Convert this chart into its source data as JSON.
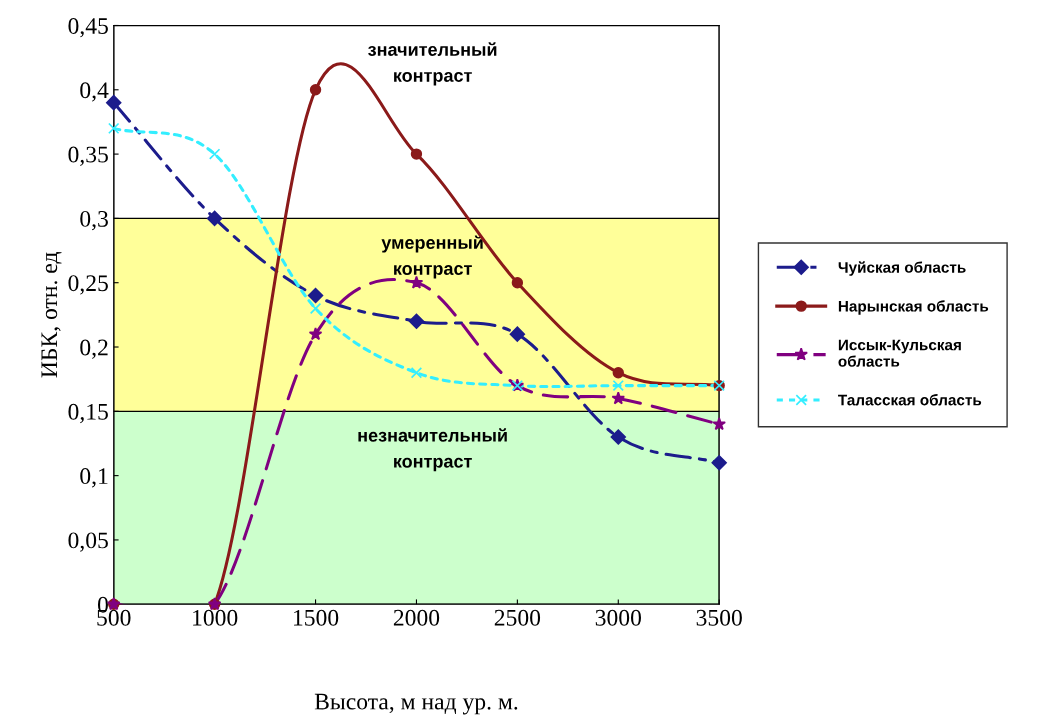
{
  "chart_data": {
    "type": "line",
    "xlabel": "Высота, м над ур. м.",
    "ylabel": "ИБК, отн. ед",
    "x": [
      500,
      1000,
      1500,
      2000,
      2500,
      3000,
      3500
    ],
    "series": [
      {
        "name": "Чуйская область",
        "color": "#1c1c8c",
        "marker": "diamond",
        "line_style": "dashdot",
        "values": [
          0.39,
          0.3,
          0.24,
          0.22,
          0.21,
          0.13,
          0.11
        ]
      },
      {
        "name": "Нарынская область",
        "color": "#8b1a1a",
        "marker": "circle",
        "line_style": "solid",
        "values": [
          0,
          0,
          0.4,
          0.35,
          0.25,
          0.18,
          0.17
        ]
      },
      {
        "name": "Иссык-Кульская\nобласть",
        "color": "#800080",
        "marker": "star",
        "line_style": "dashed",
        "values": [
          0,
          0,
          0.21,
          0.25,
          0.17,
          0.16,
          0.14
        ]
      },
      {
        "name": "Таласская область",
        "color": "#33eeff",
        "marker": "cross",
        "line_style": "dotted",
        "values": [
          0.37,
          0.35,
          0.23,
          0.18,
          0.17,
          0.17,
          0.17
        ]
      }
    ],
    "bands": [
      {
        "axis": "y",
        "from": 0,
        "to": 0.15,
        "label": "незначительный\nконтраст",
        "color": "#ccffcc"
      },
      {
        "axis": "y",
        "from": 0.15,
        "to": 0.3,
        "label": "умеренный\nконтраст",
        "color": "#ffff99"
      },
      {
        "axis": "y",
        "from": 0.3,
        "to": 0.45,
        "label": "значительный\nконтраст",
        "color": "#ffffff"
      }
    ],
    "xlim": [
      500,
      3500
    ],
    "xticks": [
      500,
      1000,
      1500,
      2000,
      2500,
      3000,
      3500
    ],
    "ylim": [
      0,
      0.45
    ],
    "yticks": [
      0,
      {
        "value": 0.05,
        "label": "0,05"
      },
      {
        "value": 0.1,
        "label": "0,1"
      },
      {
        "value": 0.15,
        "label": "0,15"
      },
      {
        "value": 0.2,
        "label": "0,2"
      },
      {
        "value": 0.25,
        "label": "0,25"
      },
      {
        "value": 0.3,
        "label": "0,3"
      },
      {
        "value": 0.35,
        "label": "0,35"
      },
      {
        "value": 0.4,
        "label": "0,4"
      },
      {
        "value": 0.45,
        "label": "0,45"
      }
    ],
    "legend": "right",
    "grid": false
  }
}
